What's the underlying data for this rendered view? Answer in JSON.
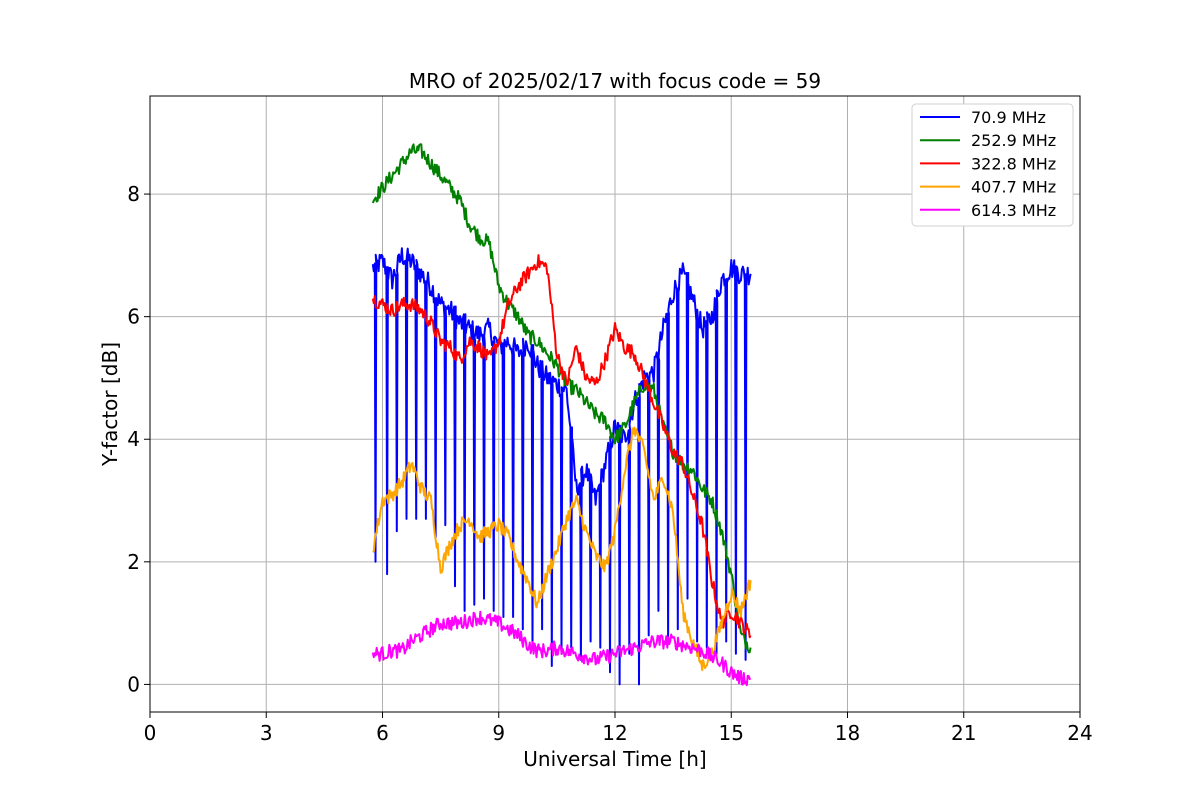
{
  "chart_data": {
    "type": "line",
    "title": "MRO of 2025/02/17 with focus code = 59",
    "xlabel": "Universal Time [h]",
    "ylabel": "Y-factor [dB]",
    "xlim": [
      0,
      24
    ],
    "ylim": [
      -0.45,
      9.6
    ],
    "xticks": [
      0,
      3,
      6,
      9,
      12,
      15,
      18,
      21,
      24
    ],
    "yticks": [
      0,
      2,
      4,
      6,
      8
    ],
    "grid": true,
    "legend_position": "top-right",
    "series": [
      {
        "name": " 70.9 MHz",
        "color": "#0000ff",
        "x": [
          5.75,
          6.0,
          6.25,
          6.5,
          6.75,
          7.0,
          7.25,
          7.5,
          7.75,
          8.0,
          8.25,
          8.5,
          8.75,
          9.0,
          9.25,
          9.5,
          9.75,
          10.0,
          10.25,
          10.5,
          10.75,
          11.0,
          11.25,
          11.5,
          11.75,
          12.0,
          12.25,
          12.5,
          12.75,
          13.0,
          13.25,
          13.5,
          13.75,
          14.0,
          14.25,
          14.5,
          14.75,
          15.0,
          15.25,
          15.5
        ],
        "y": [
          6.8,
          6.9,
          6.6,
          7.0,
          6.9,
          6.7,
          6.5,
          6.2,
          6.1,
          5.9,
          5.8,
          5.7,
          5.8,
          5.5,
          5.6,
          5.4,
          5.6,
          5.2,
          5.0,
          4.9,
          4.8,
          3.2,
          3.5,
          3.0,
          3.6,
          4.2,
          4.0,
          4.6,
          5.0,
          5.1,
          5.8,
          6.4,
          6.7,
          6.3,
          5.8,
          6.0,
          6.6,
          6.8,
          6.7,
          6.7
        ],
        "dips": [
          5.8,
          6.1,
          6.35,
          6.6,
          6.85,
          7.1,
          7.35,
          7.6,
          7.85,
          8.1,
          8.35,
          8.6,
          8.85,
          9.1,
          9.35,
          9.6,
          9.85,
          10.1,
          10.35,
          10.6,
          10.85,
          11.1,
          11.35,
          11.6,
          11.85,
          12.1,
          12.35,
          12.6,
          12.85,
          13.1,
          13.35,
          13.6,
          13.85,
          14.1,
          14.35,
          14.6,
          14.85,
          15.1,
          15.35
        ],
        "dip_values": [
          2.0,
          1.8,
          2.5,
          2.7,
          2.7,
          2.7,
          2.4,
          2.6,
          1.6,
          1.2,
          1.3,
          1.4,
          1.2,
          1.1,
          1.1,
          0.9,
          0.6,
          0.9,
          0.3,
          0.5,
          0.6,
          0.4,
          0.7,
          0.6,
          0.2,
          0.0,
          0.5,
          0.0,
          0.8,
          1.2,
          0.7,
          0.9,
          1.4,
          0.7,
          0.6,
          0.5,
          0.7,
          0.5,
          0.4
        ]
      },
      {
        "name": "252.9 MHz",
        "color": "#008000",
        "x": [
          5.75,
          6.0,
          6.25,
          6.5,
          6.75,
          7.0,
          7.25,
          7.5,
          7.75,
          8.0,
          8.25,
          8.5,
          8.75,
          9.0,
          9.25,
          9.5,
          9.75,
          10.0,
          10.25,
          10.5,
          10.75,
          11.0,
          11.25,
          11.5,
          11.75,
          12.0,
          12.25,
          12.5,
          12.75,
          13.0,
          13.25,
          13.5,
          13.75,
          14.0,
          14.25,
          14.5,
          14.75,
          15.0,
          15.25,
          15.5
        ],
        "y": [
          7.9,
          8.1,
          8.3,
          8.5,
          8.7,
          8.7,
          8.5,
          8.3,
          8.1,
          7.9,
          7.5,
          7.3,
          7.2,
          6.5,
          6.2,
          6.0,
          5.7,
          5.6,
          5.4,
          5.2,
          4.9,
          4.8,
          4.6,
          4.4,
          4.3,
          4.0,
          4.2,
          4.6,
          4.9,
          4.8,
          4.2,
          3.8,
          3.6,
          3.5,
          3.2,
          3.0,
          2.5,
          1.8,
          0.8,
          0.6
        ]
      },
      {
        "name": "322.8 MHz",
        "color": "#ff0000",
        "x": [
          5.75,
          6.0,
          6.25,
          6.5,
          6.75,
          7.0,
          7.25,
          7.5,
          7.75,
          8.0,
          8.25,
          8.5,
          8.75,
          9.0,
          9.25,
          9.5,
          9.75,
          10.0,
          10.25,
          10.5,
          10.75,
          11.0,
          11.25,
          11.5,
          11.75,
          12.0,
          12.25,
          12.5,
          12.75,
          13.0,
          13.25,
          13.5,
          13.75,
          14.0,
          14.25,
          14.5,
          14.75,
          15.0,
          15.25,
          15.5
        ],
        "y": [
          6.3,
          6.2,
          6.1,
          6.2,
          6.2,
          6.1,
          5.9,
          5.6,
          5.5,
          5.3,
          5.6,
          5.5,
          5.3,
          5.6,
          6.2,
          6.5,
          6.7,
          6.9,
          6.8,
          5.4,
          4.9,
          5.5,
          5.0,
          4.9,
          5.3,
          5.8,
          5.5,
          5.4,
          5.0,
          4.6,
          4.2,
          3.8,
          3.6,
          3.1,
          2.6,
          1.7,
          1.0,
          1.2,
          1.0,
          0.8
        ]
      },
      {
        "name": "407.7 MHz",
        "color": "#ffa500",
        "x": [
          5.75,
          6.0,
          6.25,
          6.5,
          6.75,
          7.0,
          7.25,
          7.5,
          7.75,
          8.0,
          8.25,
          8.5,
          8.75,
          9.0,
          9.25,
          9.5,
          9.75,
          10.0,
          10.25,
          10.5,
          10.75,
          11.0,
          11.25,
          11.5,
          11.75,
          12.0,
          12.25,
          12.5,
          12.75,
          13.0,
          13.25,
          13.5,
          13.75,
          14.0,
          14.25,
          14.5,
          14.75,
          15.0,
          15.25,
          15.5
        ],
        "y": [
          2.2,
          3.0,
          3.1,
          3.3,
          3.6,
          3.2,
          3.0,
          1.9,
          2.3,
          2.6,
          2.7,
          2.4,
          2.5,
          2.6,
          2.4,
          2.0,
          1.7,
          1.3,
          1.8,
          2.2,
          2.7,
          3.0,
          2.5,
          2.1,
          1.9,
          2.5,
          3.5,
          4.2,
          3.8,
          3.0,
          3.4,
          2.8,
          1.2,
          0.7,
          0.3,
          0.5,
          1.0,
          1.5,
          1.2,
          1.7
        ]
      },
      {
        "name": "614.3 MHz",
        "color": "#ff00ff",
        "x": [
          5.75,
          6.0,
          6.25,
          6.5,
          6.75,
          7.0,
          7.25,
          7.5,
          7.75,
          8.0,
          8.25,
          8.5,
          8.75,
          9.0,
          9.25,
          9.5,
          9.75,
          10.0,
          10.25,
          10.5,
          10.75,
          11.0,
          11.25,
          11.5,
          11.75,
          12.0,
          12.25,
          12.5,
          12.75,
          13.0,
          13.25,
          13.5,
          13.75,
          14.0,
          14.25,
          14.5,
          14.75,
          15.0,
          15.25,
          15.5
        ],
        "y": [
          0.5,
          0.5,
          0.55,
          0.55,
          0.7,
          0.8,
          0.9,
          1.0,
          1.0,
          1.0,
          1.05,
          1.1,
          1.05,
          1.0,
          0.9,
          0.8,
          0.65,
          0.55,
          0.55,
          0.6,
          0.55,
          0.5,
          0.45,
          0.4,
          0.45,
          0.5,
          0.55,
          0.6,
          0.65,
          0.7,
          0.7,
          0.7,
          0.65,
          0.6,
          0.55,
          0.45,
          0.35,
          0.2,
          0.1,
          0.1
        ]
      }
    ]
  }
}
